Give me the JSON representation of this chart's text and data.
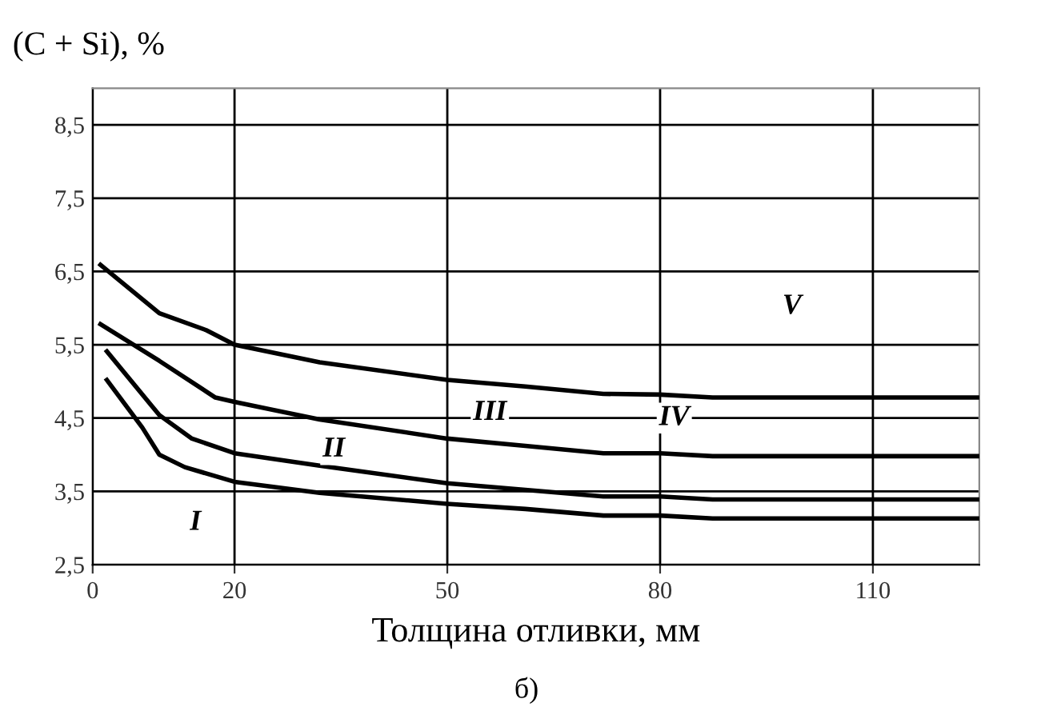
{
  "chart_data": {
    "type": "line",
    "ylabel": "(C + Si), %",
    "xlabel": "Толщина отливки, мм",
    "xlim": [
      0,
      125
    ],
    "xticks": [
      0,
      20,
      50,
      80,
      110
    ],
    "ylim": [
      2.5,
      9.0
    ],
    "yticks": [
      {
        "value": 2.5,
        "label": "2,5"
      },
      {
        "value": 3.5,
        "label": "3,5"
      },
      {
        "value": 4.5,
        "label": "4,5"
      },
      {
        "value": 5.5,
        "label": "5,5"
      },
      {
        "value": 6.5,
        "label": "6,5"
      },
      {
        "value": 7.5,
        "label": "7,5"
      },
      {
        "value": 8.5,
        "label": "8,5"
      }
    ],
    "grid": true,
    "marker": "none",
    "line_style": "solid",
    "series": [
      {
        "color": "#000000",
        "x": [
          1.1,
          9.4,
          16,
          20,
          32,
          50,
          61,
          72,
          80,
          87.4,
          125
        ],
        "values": [
          6.59,
          5.93,
          5.7,
          5.5,
          5.26,
          5.02,
          4.93,
          4.83,
          4.82,
          4.78,
          4.78
        ]
      },
      {
        "color": "#000000",
        "x": [
          1.1,
          9.4,
          17.3,
          20,
          32,
          50,
          61,
          72,
          80,
          87.4,
          125
        ],
        "values": [
          5.78,
          5.28,
          4.78,
          4.72,
          4.48,
          4.22,
          4.12,
          4.02,
          4.02,
          3.98,
          3.98
        ]
      },
      {
        "color": "#000000",
        "x": [
          2,
          9.4,
          14,
          20,
          32,
          50,
          61,
          72,
          80,
          87.4,
          125
        ],
        "values": [
          5.41,
          4.54,
          4.22,
          4.02,
          3.85,
          3.61,
          3.52,
          3.43,
          3.43,
          3.39,
          3.39
        ]
      },
      {
        "color": "#000000",
        "x": [
          2,
          7,
          9.4,
          13,
          20,
          32,
          50,
          61,
          72,
          80,
          87.4,
          125
        ],
        "values": [
          5.02,
          4.37,
          4.0,
          3.83,
          3.63,
          3.48,
          3.33,
          3.26,
          3.17,
          3.17,
          3.13,
          3.13
        ]
      }
    ],
    "annotations": [
      {
        "text": "I",
        "x": 14.5,
        "y": 3.07
      },
      {
        "text": "II",
        "x": 34,
        "y": 4.07
      },
      {
        "text": "III",
        "x": 56,
        "y": 4.57
      },
      {
        "text": "IV",
        "x": 82,
        "y": 4.5
      },
      {
        "text": "V",
        "x": 98.6,
        "y": 6.02
      },
      "б)"
    ]
  }
}
